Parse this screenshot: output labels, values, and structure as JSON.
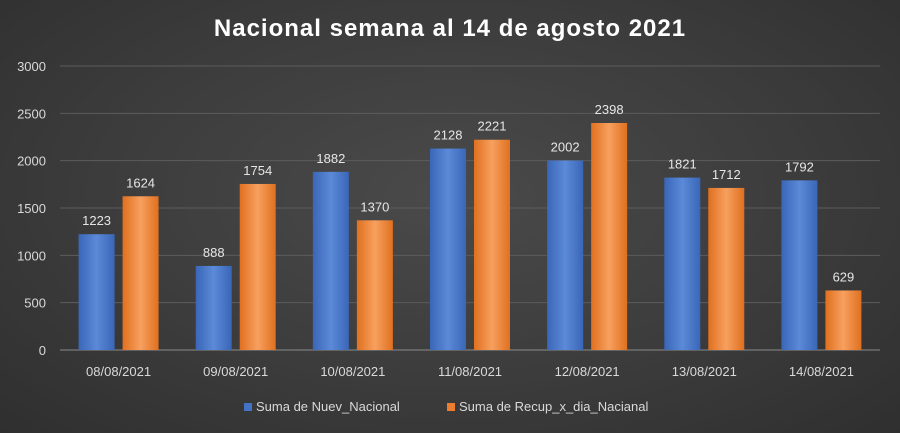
{
  "colors": {
    "series1": "#4472c4",
    "series1_light": "#5b8ad8",
    "series2": "#ed7d31",
    "series2_light": "#f59a55"
  },
  "chart_data": {
    "type": "bar",
    "title": "Nacional semana al 14 de agosto 2021",
    "xlabel": "",
    "ylabel": "",
    "ylim": [
      0,
      3000
    ],
    "yticks": [
      0,
      500,
      1000,
      1500,
      2000,
      2500,
      3000
    ],
    "categories": [
      "08/08/2021",
      "09/08/2021",
      "10/08/2021",
      "11/08/2021",
      "12/08/2021",
      "13/08/2021",
      "14/08/2021"
    ],
    "series": [
      {
        "name": "Suma de Nuev_Nacional",
        "values": [
          1223,
          888,
          1882,
          2128,
          2002,
          1821,
          1792
        ]
      },
      {
        "name": "Suma de Recup_x_dia_Nacianal",
        "values": [
          1624,
          1754,
          1370,
          2221,
          2398,
          1712,
          629
        ]
      }
    ],
    "legend": "bottom-center",
    "grid": true
  }
}
